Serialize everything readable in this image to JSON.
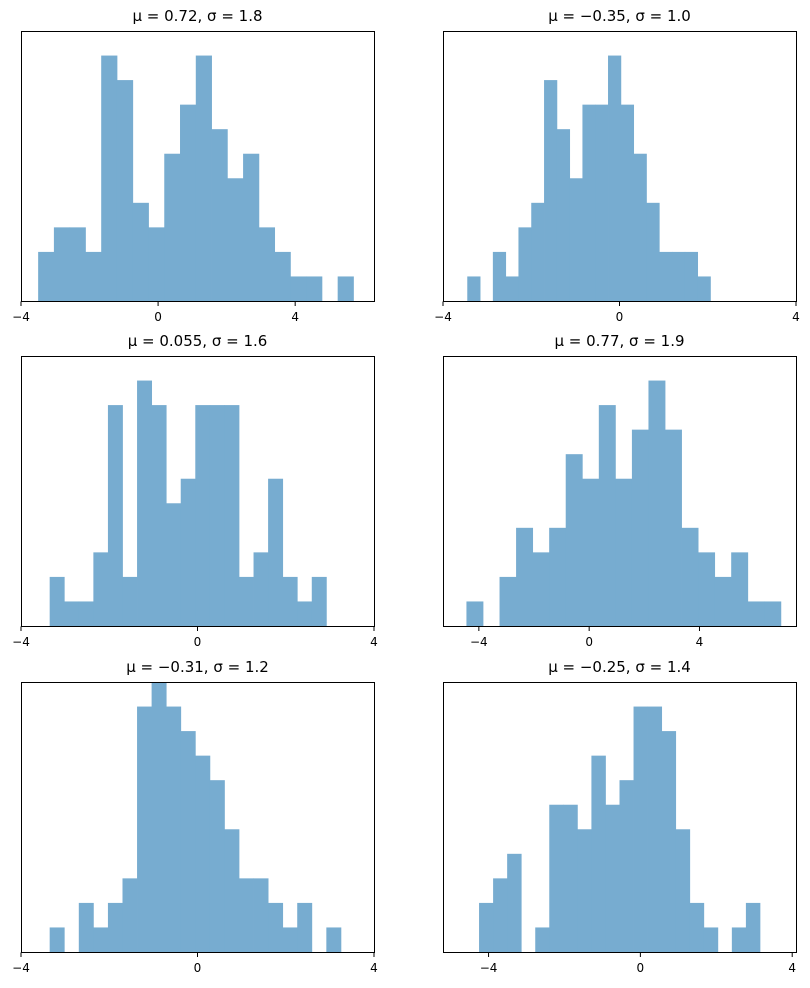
{
  "figure": {
    "bar_color": "#77acd0"
  },
  "chart_data": [
    {
      "type": "bar",
      "title": "μ = 0.72,    σ = 1.8",
      "x_ticks": [
        -4,
        0,
        4
      ],
      "x_tick_labels": [
        "−4",
        "0",
        "4"
      ],
      "xlim": [
        -4,
        6.3
      ],
      "ylim": [
        0,
        11
      ],
      "bins": [
        -3.5,
        -3.04,
        -2.58,
        -2.12,
        -1.66,
        -1.2,
        -0.74,
        -0.28,
        0.18,
        0.64,
        1.1,
        1.56,
        2.02,
        2.48,
        2.94,
        3.4,
        3.86,
        4.32,
        4.78,
        5.24,
        5.7
      ],
      "counts": [
        2,
        3,
        3,
        2,
        10,
        9,
        4,
        3,
        6,
        8,
        10,
        7,
        5,
        6,
        3,
        2,
        1,
        1,
        0,
        1
      ],
      "grid": false,
      "yticks_visible": false
    },
    {
      "type": "bar",
      "title": "μ = −0.35,    σ = 1.0",
      "x_ticks": [
        -4,
        0,
        4
      ],
      "x_tick_labels": [
        "−4",
        "0",
        "4"
      ],
      "xlim": [
        -4,
        4
      ],
      "ylim": [
        0,
        11
      ],
      "bins": [
        -3.45,
        -3.16,
        -2.87,
        -2.58,
        -2.29,
        -2.0,
        -1.71,
        -1.42,
        -1.13,
        -0.84,
        -0.55,
        -0.26,
        0.03,
        0.32,
        0.61,
        0.9,
        1.19,
        1.48,
        1.77,
        2.06,
        2.35
      ],
      "counts": [
        1,
        0,
        2,
        1,
        3,
        4,
        9,
        7,
        5,
        8,
        8,
        10,
        8,
        6,
        4,
        2,
        2,
        2,
        1,
        0
      ],
      "grid": false,
      "yticks_visible": false
    },
    {
      "type": "bar",
      "title": "μ = 0.055,    σ = 1.6",
      "x_ticks": [
        -4,
        0,
        4
      ],
      "x_tick_labels": [
        "−4",
        "0",
        "4"
      ],
      "xlim": [
        -4,
        4
      ],
      "ylim": [
        0,
        11
      ],
      "bins": [
        -3.35,
        -3.02,
        -2.69,
        -2.36,
        -2.03,
        -1.7,
        -1.37,
        -1.04,
        -0.71,
        -0.38,
        -0.05,
        0.28,
        0.61,
        0.94,
        1.27,
        1.6,
        1.93,
        2.26,
        2.59,
        2.92,
        3.25
      ],
      "counts": [
        2,
        1,
        1,
        3,
        9,
        2,
        10,
        9,
        5,
        6,
        9,
        9,
        9,
        2,
        3,
        6,
        2,
        1,
        2,
        0
      ],
      "grid": false,
      "yticks_visible": false
    },
    {
      "type": "bar",
      "title": "μ = 0.77,    σ = 1.9",
      "x_ticks": [
        -4,
        0,
        4
      ],
      "x_tick_labels": [
        "−4",
        "0",
        "4"
      ],
      "xlim": [
        -5.3,
        7.5
      ],
      "ylim": [
        0,
        11
      ],
      "bins": [
        -4.45,
        -3.85,
        -3.25,
        -2.65,
        -2.05,
        -1.45,
        -0.85,
        -0.25,
        0.35,
        0.95,
        1.55,
        2.15,
        2.75,
        3.35,
        3.95,
        4.55,
        5.15,
        5.75,
        6.35,
        6.95,
        7.55
      ],
      "counts": [
        1,
        0,
        2,
        4,
        3,
        4,
        7,
        6,
        9,
        6,
        8,
        10,
        8,
        4,
        3,
        2,
        3,
        1,
        1,
        0
      ],
      "grid": false,
      "yticks_visible": false
    },
    {
      "type": "bar",
      "title": "μ = −0.31,    σ = 1.2",
      "x_ticks": [
        -4,
        0,
        4
      ],
      "x_tick_labels": [
        "−4",
        "0",
        "4"
      ],
      "xlim": [
        -4,
        4
      ],
      "ylim": [
        0,
        11
      ],
      "bins": [
        -3.35,
        -3.02,
        -2.69,
        -2.36,
        -2.03,
        -1.7,
        -1.37,
        -1.04,
        -0.71,
        -0.38,
        -0.05,
        0.28,
        0.61,
        0.94,
        1.27,
        1.6,
        1.93,
        2.26,
        2.59,
        2.92,
        3.25
      ],
      "counts": [
        1,
        0,
        2,
        1,
        2,
        3,
        10,
        11,
        10,
        9,
        8,
        7,
        5,
        3,
        3,
        2,
        1,
        2,
        0,
        1
      ],
      "grid": false,
      "yticks_visible": false
    },
    {
      "type": "bar",
      "title": "μ = −0.25,    σ = 1.4",
      "x_ticks": [
        -4,
        0,
        4
      ],
      "x_tick_labels": [
        "−4",
        "0",
        "4"
      ],
      "xlim": [
        -5.2,
        4.1
      ],
      "ylim": [
        0,
        11
      ],
      "bins": [
        -4.25,
        -3.88,
        -3.51,
        -3.14,
        -2.77,
        -2.4,
        -2.03,
        -1.66,
        -1.29,
        -0.92,
        -0.55,
        -0.18,
        0.19,
        0.56,
        0.93,
        1.3,
        1.67,
        2.04,
        2.41,
        2.78,
        3.15
      ],
      "counts": [
        2,
        3,
        4,
        0,
        1,
        6,
        6,
        5,
        8,
        6,
        7,
        10,
        10,
        9,
        5,
        2,
        1,
        0,
        1,
        2
      ],
      "grid": false,
      "yticks_visible": false
    }
  ]
}
